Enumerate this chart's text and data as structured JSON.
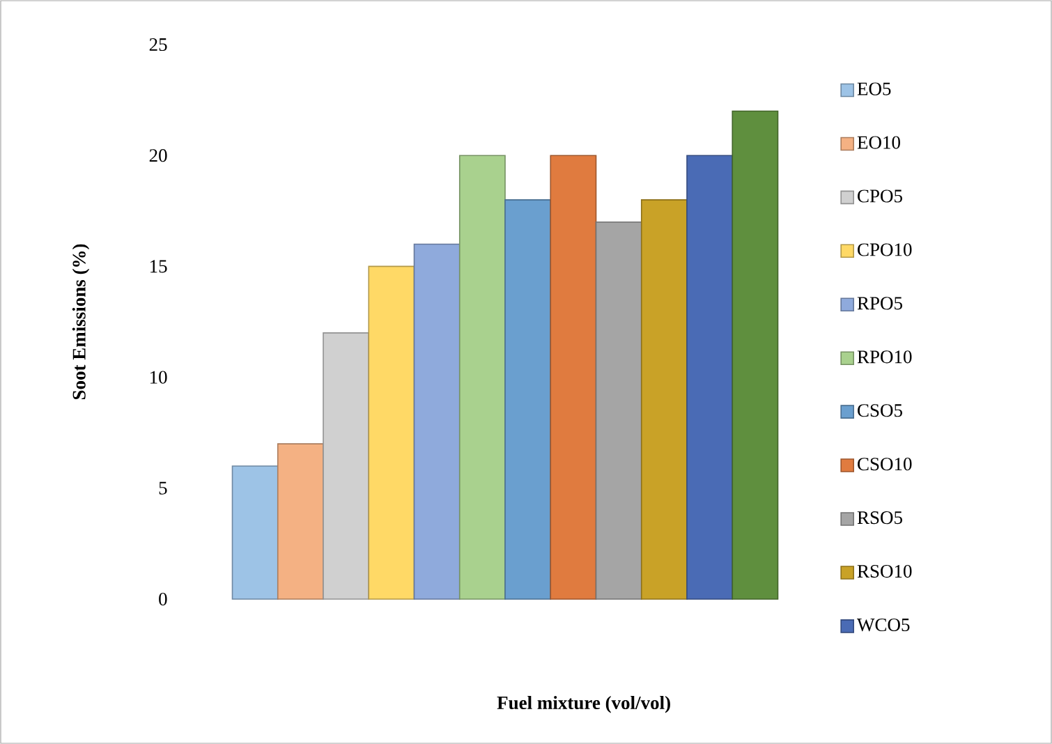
{
  "chart_data": {
    "type": "bar",
    "xlabel": "Fuel mixture (vol/vol)",
    "ylabel": "Soot Emissions (%)",
    "categories": [
      null
    ],
    "ylim": [
      0,
      25
    ],
    "yticks": [
      0,
      5,
      10,
      15,
      20,
      25
    ],
    "tick_labels": "y",
    "legend": "right",
    "series": [
      {
        "name": "EO5",
        "color": "#9dc3e6",
        "values": [
          6
        ]
      },
      {
        "name": "EO10",
        "color": "#f4b183",
        "values": [
          7
        ]
      },
      {
        "name": "CPO5",
        "color": "#d0d0d0",
        "values": [
          12
        ]
      },
      {
        "name": "CPO10",
        "color": "#ffd966",
        "values": [
          15
        ]
      },
      {
        "name": "RPO5",
        "color": "#8faadc",
        "values": [
          16
        ]
      },
      {
        "name": "RPO10",
        "color": "#a9d18e",
        "values": [
          20
        ]
      },
      {
        "name": "CSO5",
        "color": "#6a9fcf",
        "values": [
          18
        ]
      },
      {
        "name": "CSO10",
        "color": "#e07b3f",
        "values": [
          20
        ]
      },
      {
        "name": "RSO5",
        "color": "#a5a5a5",
        "values": [
          17
        ]
      },
      {
        "name": "RSO10",
        "color": "#c9a227",
        "values": [
          18
        ]
      },
      {
        "name": "WCO5",
        "color": "#4a6bb5",
        "values": [
          20
        ]
      },
      {
        "color": "#5f8f3e",
        "values": [
          22
        ]
      }
    ]
  }
}
